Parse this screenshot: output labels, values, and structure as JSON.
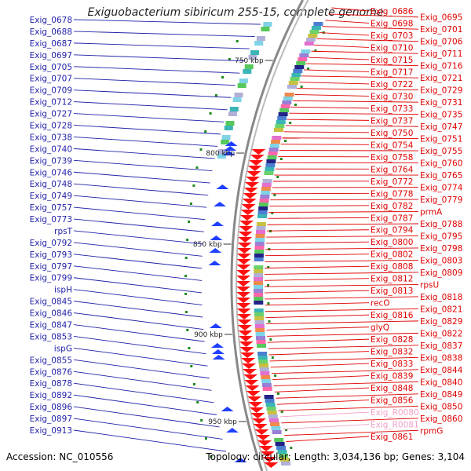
{
  "title": "Exiguobacterium sibiricum 255-15, complete genome",
  "footer": {
    "accession": "Accession: NC_010556",
    "topology": "Topology: circular; Length: 3,034,136 bp; Genes: 3,104"
  },
  "colors": {
    "left_labels": "#1f1fa8",
    "right_labels": "#e00000",
    "rna_labels": "#f0a0c8",
    "backbone": "#888888",
    "forward_arrow": "#2040ff",
    "reverse_arrow": "#ff1010",
    "gc_green": "#1d8a1d"
  },
  "kbp_labels": [
    "750 kbp",
    "800 kbp",
    "850 kbp",
    "900 kbp",
    "950 kbp"
  ],
  "left_labels": [
    "Exig_0678",
    "Exig_0688",
    "Exig_0687",
    "Exig_0697",
    "Exig_0705",
    "Exig_0707",
    "Exig_0709",
    "Exig_0712",
    "Exig_0727",
    "Exig_0728",
    "Exig_0738",
    "Exig_0740",
    "Exig_0739",
    "Exig_0746",
    "Exig_0748",
    "Exig_0749",
    "Exig_0757",
    "Exig_0773",
    "rpsT",
    "Exig_0792",
    "Exig_0793",
    "Exig_0797",
    "Exig_0799",
    "ispH",
    "Exig_0845",
    "Exig_0846",
    "Exig_0847",
    "Exig_0853",
    "ispG",
    "Exig_0855",
    "Exig_0876",
    "Exig_0878",
    "Exig_0892",
    "Exig_0896",
    "Exig_0897",
    "Exig_0913"
  ],
  "right_labels": [
    "Exig_0686",
    "Exig_0695",
    "Exig_0698",
    "Exig_0701",
    "Exig_0703",
    "Exig_0706",
    "Exig_0710",
    "Exig_0711",
    "Exig_0715",
    "Exig_0716",
    "Exig_0717",
    "Exig_0721",
    "Exig_0722",
    "Exig_0729",
    "Exig_0730",
    "Exig_0731",
    "Exig_0733",
    "Exig_0735",
    "Exig_0737",
    "Exig_0747",
    "Exig_0750",
    "Exig_0751",
    "Exig_0754",
    "Exig_0755",
    "Exig_0758",
    "Exig_0760",
    "Exig_0764",
    "Exig_0765",
    "Exig_0772",
    "Exig_0774",
    "Exig_0778",
    "Exig_0779",
    "Exig_0782",
    "prmA",
    "Exig_0787",
    "Exig_0788",
    "Exig_0794",
    "Exig_0795",
    "Exig_0800",
    "Exig_0798",
    "Exig_0802",
    "Exig_0803",
    "Exig_0808",
    "Exig_0809",
    "Exig_0812",
    "rpsU",
    "Exig_0813",
    "Exig_0818",
    "recO",
    "Exig_0821",
    "Exig_0816",
    "Exig_0829",
    "glyQ",
    "Exig_0822",
    "Exig_0828",
    "Exig_0837",
    "Exig_0832",
    "Exig_0838",
    "Exig_0833",
    "Exig_0844",
    "Exig_0839",
    "Exig_0840",
    "Exig_0848",
    "Exig_0849",
    "Exig_0856",
    "Exig_0850",
    "Exig_R0080",
    "Exig_0860",
    "Exig_R0081",
    "rpmG",
    "Exig_0861"
  ],
  "rna_labels": [
    "Exig_R0080",
    "Exig_R0081"
  ]
}
